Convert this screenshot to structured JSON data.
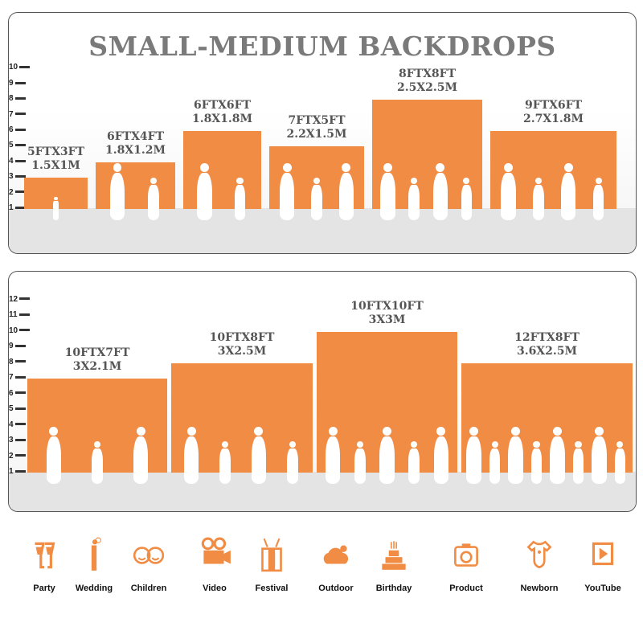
{
  "title": "SMALL-MEDIUM BACKDROPS",
  "accent_color": "#f08c44",
  "panels": [
    {
      "axis_ticks": [
        1,
        2,
        3,
        4,
        5,
        6,
        7,
        8,
        9,
        10
      ],
      "backdrops": [
        {
          "ft": "5FTX3FT",
          "m": "1.5X1M",
          "width_ft": 5,
          "height_ft": 3
        },
        {
          "ft": "6FTX4FT",
          "m": "1.8X1.2M",
          "width_ft": 6,
          "height_ft": 4
        },
        {
          "ft": "6FTX6FT",
          "m": "1.8X1.8M",
          "width_ft": 6,
          "height_ft": 6
        },
        {
          "ft": "7FTX5FT",
          "m": "2.2X1.5M",
          "width_ft": 7,
          "height_ft": 5
        },
        {
          "ft": "8FTX8FT",
          "m": "2.5X2.5M",
          "width_ft": 8,
          "height_ft": 8
        },
        {
          "ft": "9FTX6FT",
          "m": "2.7X1.8M",
          "width_ft": 9,
          "height_ft": 6
        }
      ]
    },
    {
      "axis_ticks": [
        1,
        2,
        3,
        4,
        5,
        6,
        7,
        8,
        9,
        10,
        11,
        12
      ],
      "backdrops": [
        {
          "ft": "10FTX7FT",
          "m": "3X2.1M",
          "width_ft": 10,
          "height_ft": 7
        },
        {
          "ft": "10FTX8FT",
          "m": "3X2.5M",
          "width_ft": 10,
          "height_ft": 8
        },
        {
          "ft": "10FTX10FT",
          "m": "3X3M",
          "width_ft": 10,
          "height_ft": 10
        },
        {
          "ft": "12FTX8FT",
          "m": "3.6X2.5M",
          "width_ft": 12,
          "height_ft": 8
        }
      ]
    }
  ],
  "uses": [
    {
      "label": "Party",
      "icon": "champagne-glasses-icon"
    },
    {
      "label": "Wedding",
      "icon": "wedding-couple-icon"
    },
    {
      "label": "Children",
      "icon": "children-faces-icon"
    },
    {
      "label": "Video",
      "icon": "movie-camera-icon"
    },
    {
      "label": "Festival",
      "icon": "gift-box-icon"
    },
    {
      "label": "Outdoor",
      "icon": "cloud-icon"
    },
    {
      "label": "Birthday",
      "icon": "birthday-cake-icon"
    },
    {
      "label": "Product",
      "icon": "camera-icon"
    },
    {
      "label": "Newborn",
      "icon": "baby-onesie-icon"
    },
    {
      "label": "YouTube",
      "icon": "play-button-icon"
    }
  ]
}
